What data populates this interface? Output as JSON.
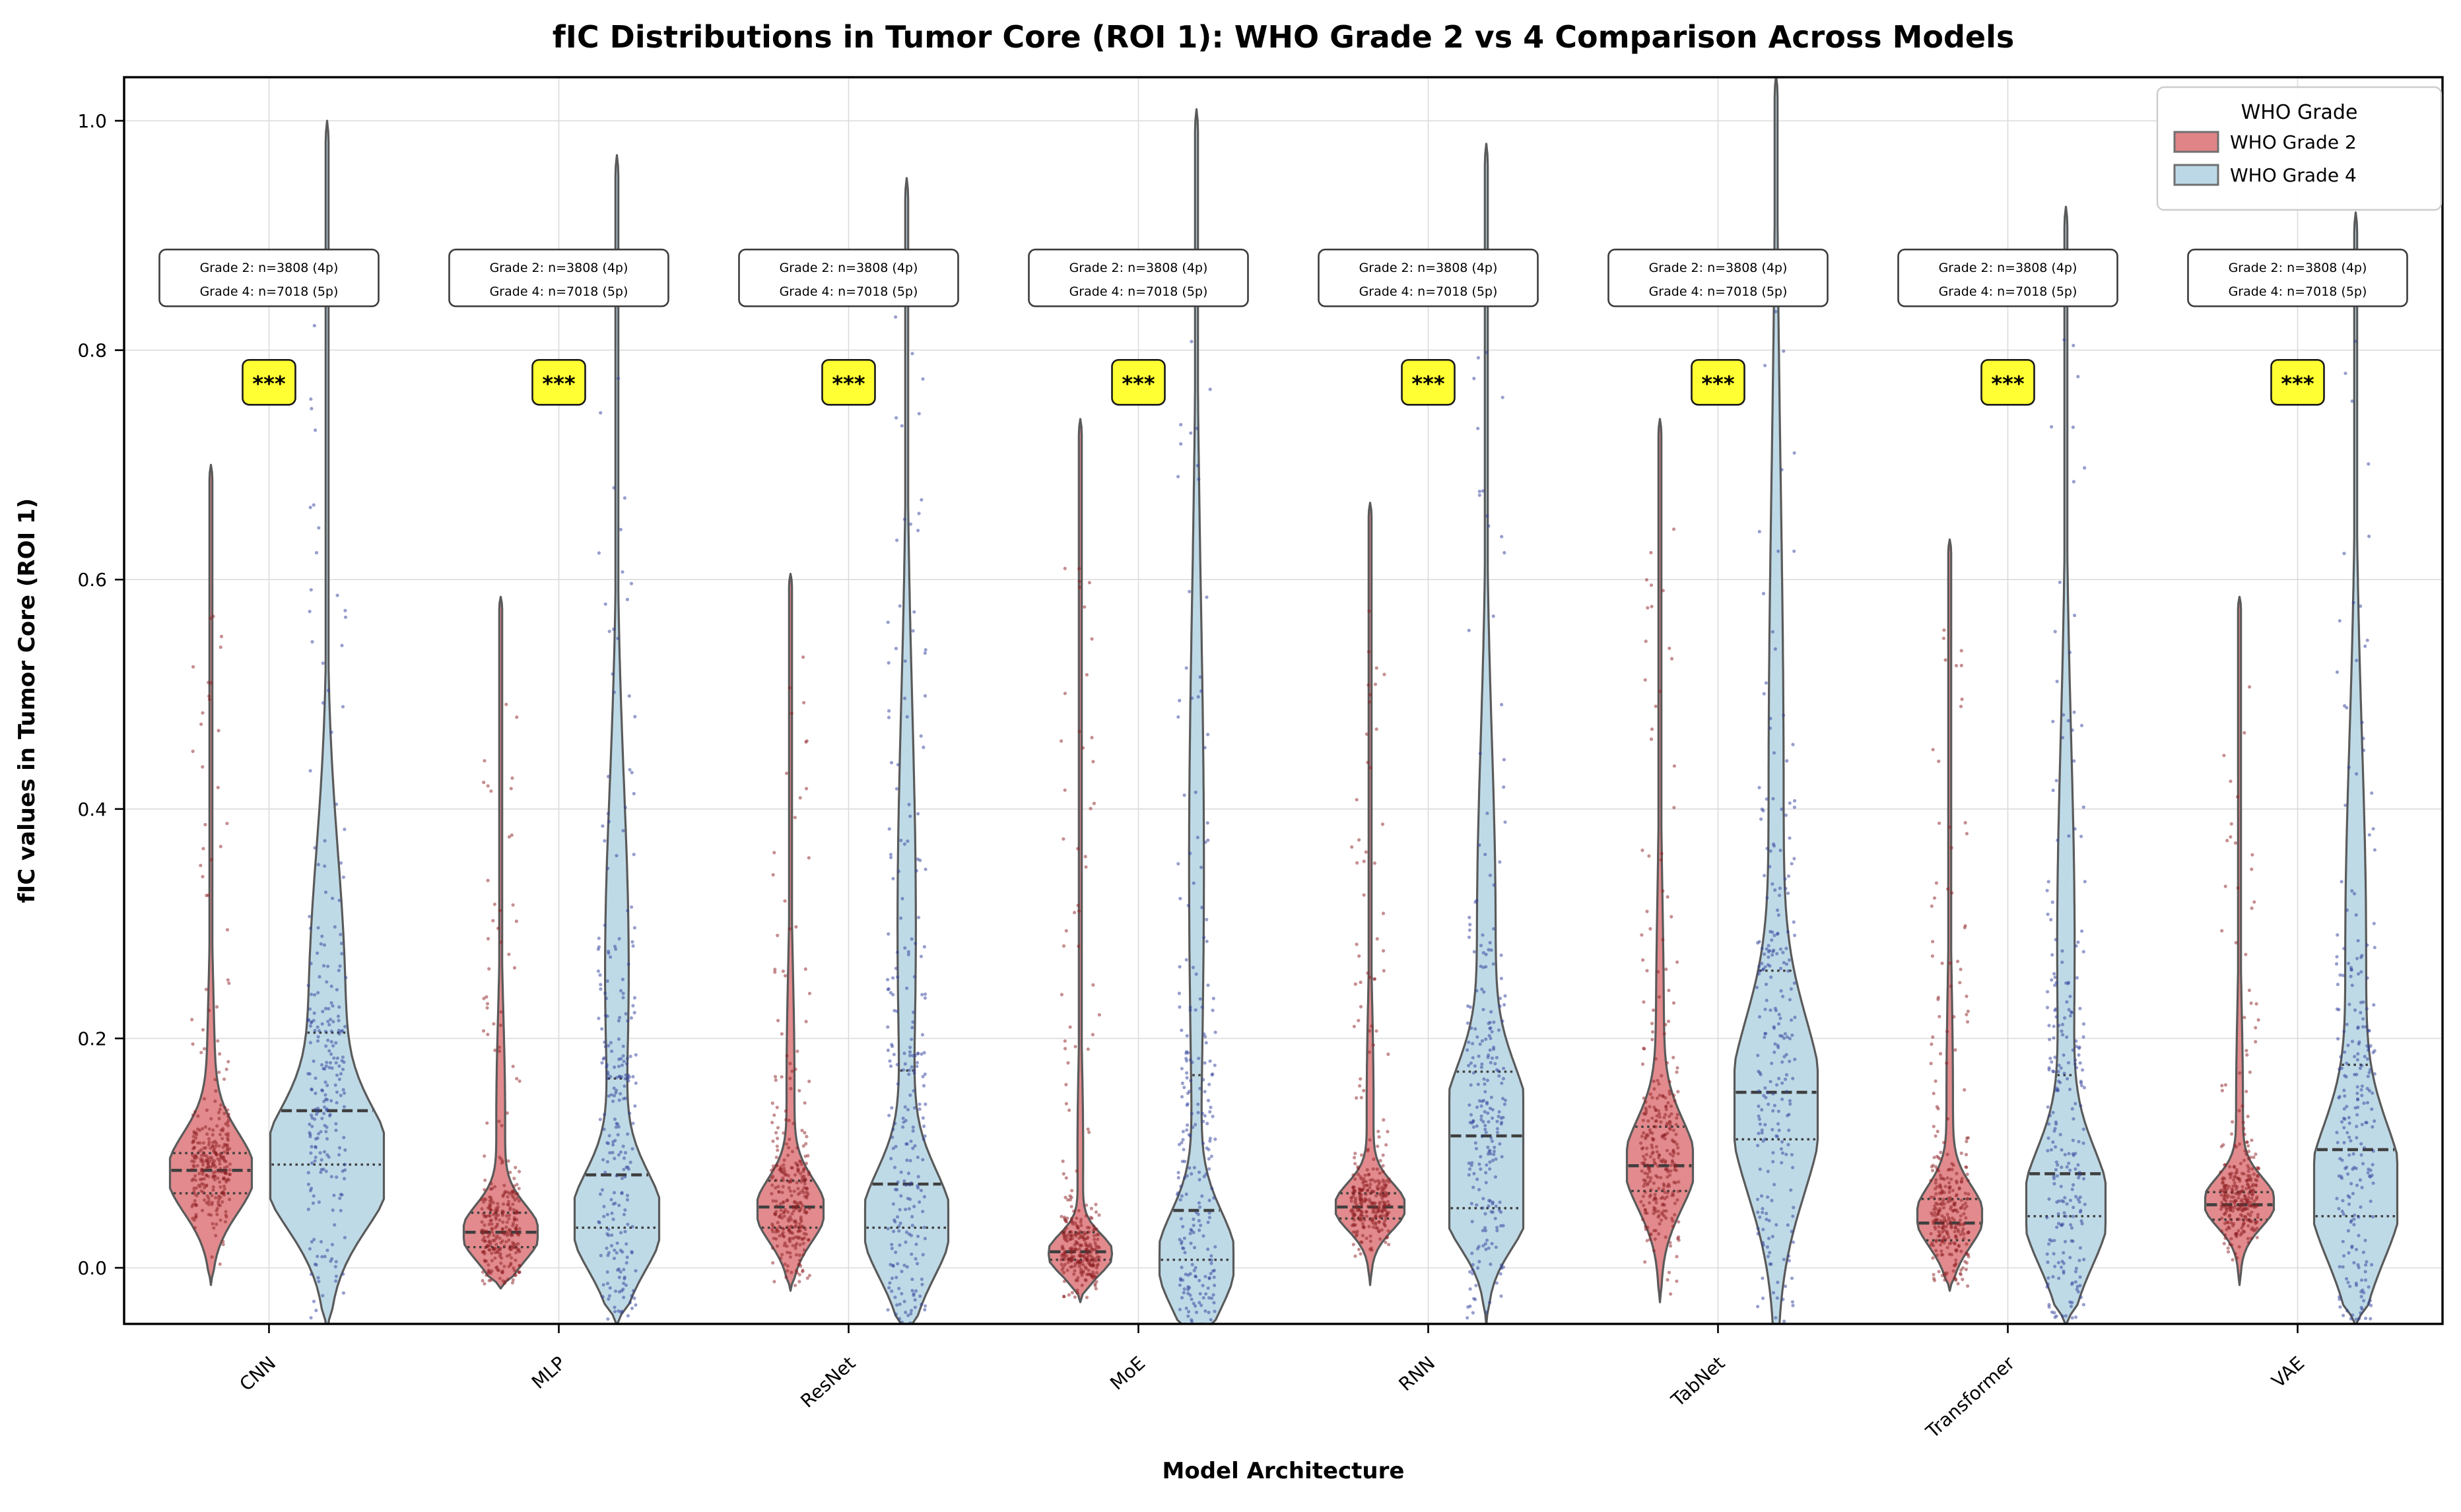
{
  "title": "fIC Distributions in Tumor Core (ROI 1): WHO Grade 2 vs 4 Comparison Across Models",
  "axes": {
    "xlabel": "Model Architecture",
    "ylabel": "fIC values in Tumor Core (ROI 1)",
    "ytick_labels": [
      "0.0",
      "0.2",
      "0.4",
      "0.6",
      "0.8",
      "1.0"
    ],
    "ytick_values": [
      0.0,
      0.2,
      0.4,
      0.6,
      0.8,
      1.0
    ],
    "ylim": [
      -0.049,
      1.038
    ],
    "grid": "both"
  },
  "legend": {
    "title": "WHO Grade",
    "entries": [
      {
        "label": "WHO Grade 2",
        "color": "#E08487"
      },
      {
        "label": "WHO Grade 4",
        "color": "#BCD8E6"
      }
    ]
  },
  "annotation": {
    "line1": "Grade 2: n=3808 (4p)",
    "line2": "Grade 4: n=7018 (5p)",
    "value_center": 0.863
  },
  "significance": {
    "label": "***",
    "value_center": 0.772,
    "background": "#FFFF33"
  },
  "style": {
    "grade2_fill": "#E08487",
    "grade4_fill": "#BCD8E6",
    "grade2_point": "#8E1F24",
    "grade4_point": "#303F9B",
    "violin_edge": "#5A5A5A",
    "quartile_line": "#3F3F3F",
    "grid_color": "#DBDBDB",
    "spine_color": "#000000",
    "annotation_border": "#3C3C3C",
    "sig_border": "#1A1A1A"
  },
  "chart_data": {
    "type": "violin",
    "categories": [
      "CNN",
      "MLP",
      "ResNet",
      "MoE",
      "RNN",
      "TabNet",
      "Transformer",
      "VAE"
    ],
    "xlabel": "Model Architecture",
    "ylabel": "fIC values in Tumor Core (ROI 1)",
    "ylim": [
      -0.049,
      1.038
    ],
    "significance_per_model": [
      "***",
      "***",
      "***",
      "***",
      "***",
      "***",
      "***",
      "***"
    ],
    "sample_sizes": {
      "grade2": "n=3808 (4p)",
      "grade4": "n=7018 (5p)"
    },
    "series": [
      {
        "name": "WHO Grade 2",
        "n": 3808,
        "patients": "4p",
        "violins": [
          {
            "model": "CNN",
            "q1": 0.065,
            "median": 0.085,
            "q3": 0.1,
            "min": -0.015,
            "max": 0.7,
            "halfwidth": 62,
            "bumps": [
              [
                0.082,
                0.034,
                1.0
              ],
              [
                0.15,
                0.09,
                0.1
              ]
            ]
          },
          {
            "model": "MLP",
            "q1": 0.018,
            "median": 0.031,
            "q3": 0.048,
            "min": -0.018,
            "max": 0.585,
            "halfwidth": 56,
            "bumps": [
              [
                0.03,
                0.024,
                1.0
              ],
              [
                0.13,
                0.09,
                0.12
              ]
            ]
          },
          {
            "model": "ResNet",
            "q1": 0.035,
            "median": 0.053,
            "q3": 0.076,
            "min": -0.02,
            "max": 0.605,
            "halfwidth": 50,
            "bumps": [
              [
                0.05,
                0.027,
                1.0
              ],
              [
                0.16,
                0.1,
                0.12
              ]
            ]
          },
          {
            "model": "MoE",
            "q1": 0.007,
            "median": 0.014,
            "q3": 0.031,
            "min": -0.03,
            "max": 0.74,
            "halfwidth": 48,
            "bumps": [
              [
                0.012,
                0.017,
                1.0
              ],
              [
                0.1,
                0.08,
                0.09
              ]
            ]
          },
          {
            "model": "RNN",
            "q1": 0.043,
            "median": 0.053,
            "q3": 0.065,
            "min": -0.015,
            "max": 0.667,
            "halfwidth": 52,
            "bumps": [
              [
                0.053,
                0.02,
                1.0
              ],
              [
                0.14,
                0.09,
                0.1
              ]
            ]
          },
          {
            "model": "TabNet",
            "q1": 0.067,
            "median": 0.089,
            "q3": 0.123,
            "min": -0.03,
            "max": 0.74,
            "halfwidth": 50,
            "bumps": [
              [
                0.09,
                0.038,
                1.0
              ],
              [
                0.2,
                0.13,
                0.12
              ]
            ]
          },
          {
            "model": "Transformer",
            "q1": 0.024,
            "median": 0.039,
            "q3": 0.06,
            "min": -0.02,
            "max": 0.635,
            "halfwidth": 49,
            "bumps": [
              [
                0.045,
                0.026,
                1.0
              ],
              [
                0.15,
                0.1,
                0.1
              ]
            ]
          },
          {
            "model": "VAE",
            "q1": 0.042,
            "median": 0.055,
            "q3": 0.066,
            "min": -0.015,
            "max": 0.585,
            "halfwidth": 52,
            "bumps": [
              [
                0.057,
                0.021,
                1.0
              ],
              [
                0.14,
                0.09,
                0.1
              ]
            ]
          }
        ]
      },
      {
        "name": "WHO Grade 4",
        "n": 7018,
        "patients": "5p",
        "violins": [
          {
            "model": "CNN",
            "q1": 0.09,
            "median": 0.137,
            "q3": 0.205,
            "min": -0.055,
            "max": 1.0,
            "halfwidth": 86,
            "bumps": [
              [
                0.085,
                0.05,
                1.0
              ],
              [
                0.23,
                0.13,
                0.32
              ]
            ]
          },
          {
            "model": "MLP",
            "q1": 0.035,
            "median": 0.081,
            "q3": 0.165,
            "min": -0.05,
            "max": 0.97,
            "halfwidth": 64,
            "bumps": [
              [
                0.04,
                0.042,
                1.0
              ],
              [
                0.26,
                0.16,
                0.28
              ]
            ]
          },
          {
            "model": "ResNet",
            "q1": 0.035,
            "median": 0.073,
            "q3": 0.172,
            "min": -0.06,
            "max": 0.95,
            "halfwidth": 63,
            "bumps": [
              [
                0.038,
                0.046,
                1.0
              ],
              [
                0.3,
                0.19,
                0.22
              ]
            ]
          },
          {
            "model": "MoE",
            "q1": 0.007,
            "median": 0.05,
            "q3": 0.168,
            "min": -0.065,
            "max": 1.01,
            "halfwidth": 56,
            "bumps": [
              [
                0.006,
                0.042,
                1.0
              ],
              [
                0.35,
                0.23,
                0.2
              ]
            ]
          },
          {
            "model": "RNN",
            "q1": 0.052,
            "median": 0.115,
            "q3": 0.171,
            "min": -0.05,
            "max": 0.98,
            "halfwidth": 56,
            "bumps": [
              [
                0.045,
                0.032,
                0.8
              ],
              [
                0.125,
                0.05,
                1.0
              ],
              [
                0.3,
                0.16,
                0.25
              ]
            ]
          },
          {
            "model": "TabNet",
            "q1": 0.112,
            "median": 0.153,
            "q3": 0.259,
            "min": -0.07,
            "max": 1.04,
            "halfwidth": 63,
            "bumps": [
              [
                0.14,
                0.075,
                1.0
              ],
              [
                0.42,
                0.27,
                0.18
              ]
            ]
          },
          {
            "model": "Transformer",
            "q1": 0.045,
            "median": 0.082,
            "q3": 0.168,
            "min": -0.05,
            "max": 0.925,
            "halfwidth": 60,
            "bumps": [
              [
                0.052,
                0.05,
                1.0
              ],
              [
                0.28,
                0.18,
                0.22
              ]
            ]
          },
          {
            "model": "VAE",
            "q1": 0.045,
            "median": 0.103,
            "q3": 0.177,
            "min": -0.05,
            "max": 0.92,
            "halfwidth": 63,
            "bumps": [
              [
                0.065,
                0.058,
                1.0
              ],
              [
                0.28,
                0.18,
                0.25
              ]
            ]
          }
        ]
      }
    ]
  }
}
